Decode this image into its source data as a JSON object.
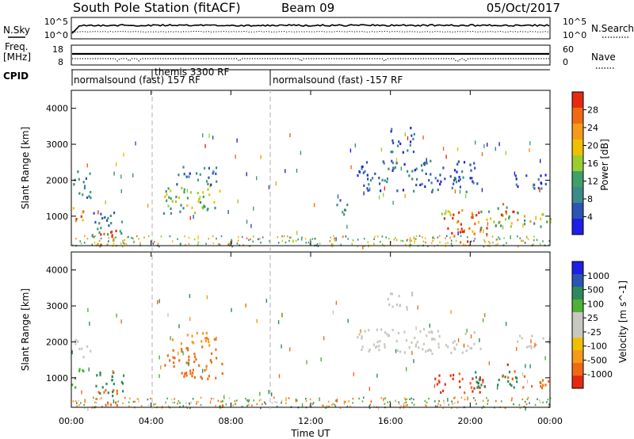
{
  "header": {
    "station": "South Pole Station (fitACF)",
    "beam": "Beam 09",
    "date": "05/Oct/2017"
  },
  "left_labels": {
    "nsky": "N.Sky",
    "freq": "Freq.",
    "freq_unit": "[MHz]",
    "cpid": "CPID"
  },
  "right_labels": {
    "nsearch": "N.Search",
    "nave": "Nave"
  },
  "noise_axis": {
    "top": "10^5",
    "bottom": "10^0"
  },
  "freq_axis": {
    "top": "18",
    "bottom": "8"
  },
  "nave_axis": {
    "top": "60",
    "bottom": "0"
  },
  "cpid_segments": [
    {
      "label": "normalsound (fast) 157 RF"
    },
    {
      "label": "themis 3300 RF"
    },
    {
      "label": "normalsound (fast) -157 RF"
    }
  ],
  "colors": {
    "power_scale": [
      "#1f1fe6",
      "#2b55b3",
      "#3d8a8a",
      "#3fa06a",
      "#9acd32",
      "#f0c000",
      "#f59a1a",
      "#f06a14",
      "#e62a10"
    ],
    "velocity_scale": [
      "#e62a10",
      "#f06a14",
      "#f59a1a",
      "#f0c000",
      "#c8c8c0",
      "#c8c8c0",
      "#4fb03a",
      "#2f8a5a",
      "#2b55b3",
      "#1f1fe6"
    ],
    "noise_line": "#000000",
    "dashed_marker": "#b0b0b0"
  },
  "chart_data": [
    {
      "type": "heatmap",
      "title": "",
      "ylabel": "Slant Range [km]",
      "xlabel": "",
      "ylim": [
        180,
        4500
      ],
      "yticks": [
        1000,
        2000,
        3000,
        4000
      ],
      "xlim_hours": [
        0,
        24
      ],
      "colorbar": {
        "label": "Power [dB]",
        "ticks": [
          "4",
          "8",
          "12",
          "16",
          "20",
          "24",
          "28"
        ],
        "range": [
          0,
          30
        ]
      },
      "echo_regions": [
        {
          "t0": 0.0,
          "t1": 1.0,
          "r0": 1500,
          "r1": 2300,
          "value": 8
        },
        {
          "t0": 0.0,
          "t1": 0.6,
          "r0": 700,
          "r1": 1300,
          "value": 22
        },
        {
          "t0": 1.2,
          "t1": 2.3,
          "r0": 220,
          "r1": 700,
          "value": 28
        },
        {
          "t0": 1.0,
          "t1": 2.6,
          "r0": 500,
          "r1": 1200,
          "value": 10
        },
        {
          "t0": 4.6,
          "t1": 7.6,
          "r0": 1100,
          "r1": 1900,
          "value": 14
        },
        {
          "t0": 5.0,
          "t1": 7.3,
          "r0": 1900,
          "r1": 2400,
          "value": 7
        },
        {
          "t0": 14.3,
          "t1": 20.5,
          "r0": 1700,
          "r1": 2600,
          "value": 6
        },
        {
          "t0": 15.8,
          "t1": 17.2,
          "r0": 2800,
          "r1": 3500,
          "value": 5
        },
        {
          "t0": 13.2,
          "t1": 14.0,
          "r0": 1000,
          "r1": 1500,
          "value": 10
        },
        {
          "t0": 18.4,
          "t1": 20.8,
          "r0": 600,
          "r1": 1200,
          "value": 24
        },
        {
          "t0": 19.0,
          "t1": 20.8,
          "r0": 300,
          "r1": 700,
          "value": 29
        },
        {
          "t0": 20.5,
          "t1": 22.8,
          "r0": 700,
          "r1": 1300,
          "value": 14
        },
        {
          "t0": 21.5,
          "t1": 22.2,
          "r0": 1000,
          "r1": 1500,
          "value": 26
        },
        {
          "t0": 22.0,
          "t1": 24.0,
          "r0": 1800,
          "r1": 2200,
          "value": 6
        },
        {
          "t0": 22.5,
          "t1": 24.0,
          "r0": 700,
          "r1": 1100,
          "value": 16
        }
      ]
    },
    {
      "type": "heatmap",
      "title": "",
      "ylabel": "Slant Range [km]",
      "xlabel": "Time UT",
      "ylim": [
        180,
        4500
      ],
      "yticks": [
        1000,
        2000,
        3000,
        4000
      ],
      "xlim_hours": [
        0,
        24
      ],
      "xticks": [
        "00:00",
        "04:00",
        "08:00",
        "12:00",
        "16:00",
        "20:00",
        "00:00"
      ],
      "colorbar": {
        "label": "Velocity [m s^-1]",
        "ticks": [
          "-1000",
          "-500",
          "-100",
          "-25",
          "25",
          "100",
          "500",
          "1000"
        ],
        "range": [
          -1000,
          1000
        ]
      },
      "echo_regions": [
        {
          "t0": 0.0,
          "t1": 1.0,
          "r0": 1600,
          "r1": 2100,
          "value": 0
        },
        {
          "t0": 0.0,
          "t1": 0.6,
          "r0": 700,
          "r1": 1300,
          "value": 50
        },
        {
          "t0": 1.2,
          "t1": 2.3,
          "r0": 220,
          "r1": 700,
          "value": -200
        },
        {
          "t0": 1.0,
          "t1": 2.6,
          "r0": 500,
          "r1": 1200,
          "value": 150
        },
        {
          "t0": 4.6,
          "t1": 7.6,
          "r0": 1000,
          "r1": 1900,
          "value": -250
        },
        {
          "t0": 5.0,
          "t1": 7.3,
          "r0": 1900,
          "r1": 2300,
          "value": -80
        },
        {
          "t0": 14.3,
          "t1": 20.5,
          "r0": 1700,
          "r1": 2400,
          "value": 5
        },
        {
          "t0": 15.8,
          "t1": 17.2,
          "r0": 2900,
          "r1": 3400,
          "value": 10
        },
        {
          "t0": 18.2,
          "t1": 20.8,
          "r0": 600,
          "r1": 1200,
          "value": -600
        },
        {
          "t0": 20.0,
          "t1": 22.4,
          "r0": 700,
          "r1": 1200,
          "value": 300
        },
        {
          "t0": 21.5,
          "t1": 22.3,
          "r0": 1000,
          "r1": 1400,
          "value": -400
        },
        {
          "t0": 22.0,
          "t1": 24.0,
          "r0": 1800,
          "r1": 2200,
          "value": 0
        },
        {
          "t0": 22.5,
          "t1": 24.0,
          "r0": 700,
          "r1": 1100,
          "value": -150
        }
      ]
    }
  ]
}
